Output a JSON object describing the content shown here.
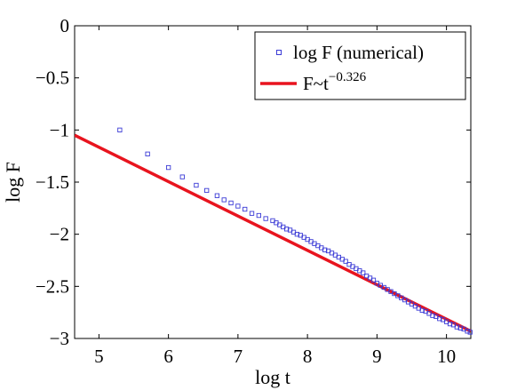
{
  "chart_data": {
    "type": "scatter",
    "xlabel": "log t",
    "ylabel": "log F",
    "xlim": [
      4.65,
      10.35
    ],
    "ylim": [
      -3,
      0
    ],
    "xticks": [
      "5",
      "6",
      "7",
      "8",
      "9",
      "10"
    ],
    "yticks": [
      "0",
      "−0.5",
      "−1",
      "−1.5",
      "−2",
      "−2.5",
      "−3"
    ],
    "legend_position": "top-right",
    "series": [
      {
        "name": "log F (numerical)",
        "kind": "points",
        "marker": "square",
        "color": "#3b3bd6",
        "points": [
          [
            5.3,
            -1.0
          ],
          [
            5.7,
            -1.23
          ],
          [
            6.0,
            -1.36
          ],
          [
            6.2,
            -1.45
          ],
          [
            6.4,
            -1.53
          ],
          [
            6.55,
            -1.58
          ],
          [
            6.7,
            -1.63
          ],
          [
            6.8,
            -1.67
          ],
          [
            6.9,
            -1.7
          ],
          [
            7.0,
            -1.73
          ],
          [
            7.1,
            -1.76
          ],
          [
            7.2,
            -1.8
          ],
          [
            7.3,
            -1.82
          ],
          [
            7.4,
            -1.85
          ],
          [
            7.5,
            -1.87
          ],
          [
            7.55,
            -1.89
          ],
          [
            7.6,
            -1.91
          ],
          [
            7.65,
            -1.93
          ],
          [
            7.7,
            -1.95
          ],
          [
            7.75,
            -1.96
          ],
          [
            7.8,
            -1.98
          ],
          [
            7.85,
            -2.0
          ],
          [
            7.9,
            -2.01
          ],
          [
            7.95,
            -2.03
          ],
          [
            8.0,
            -2.05
          ],
          [
            8.05,
            -2.07
          ],
          [
            8.1,
            -2.09
          ],
          [
            8.15,
            -2.11
          ],
          [
            8.2,
            -2.13
          ],
          [
            8.25,
            -2.15
          ],
          [
            8.3,
            -2.16
          ],
          [
            8.35,
            -2.18
          ],
          [
            8.4,
            -2.2
          ],
          [
            8.45,
            -2.22
          ],
          [
            8.5,
            -2.24
          ],
          [
            8.55,
            -2.26
          ],
          [
            8.6,
            -2.29
          ],
          [
            8.65,
            -2.31
          ],
          [
            8.7,
            -2.33
          ],
          [
            8.75,
            -2.35
          ],
          [
            8.8,
            -2.37
          ],
          [
            8.85,
            -2.4
          ],
          [
            8.9,
            -2.42
          ],
          [
            8.95,
            -2.44
          ],
          [
            9.0,
            -2.47
          ],
          [
            9.05,
            -2.49
          ],
          [
            9.1,
            -2.51
          ],
          [
            9.15,
            -2.53
          ],
          [
            9.2,
            -2.55
          ],
          [
            9.25,
            -2.57
          ],
          [
            9.3,
            -2.59
          ],
          [
            9.35,
            -2.61
          ],
          [
            9.4,
            -2.63
          ],
          [
            9.45,
            -2.65
          ],
          [
            9.5,
            -2.67
          ],
          [
            9.55,
            -2.69
          ],
          [
            9.6,
            -2.71
          ],
          [
            9.65,
            -2.73
          ],
          [
            9.7,
            -2.74
          ],
          [
            9.75,
            -2.76
          ],
          [
            9.8,
            -2.78
          ],
          [
            9.85,
            -2.79
          ],
          [
            9.9,
            -2.81
          ],
          [
            9.95,
            -2.82
          ],
          [
            10.0,
            -2.84
          ],
          [
            10.05,
            -2.86
          ],
          [
            10.1,
            -2.87
          ],
          [
            10.15,
            -2.89
          ],
          [
            10.2,
            -2.9
          ],
          [
            10.25,
            -2.91
          ],
          [
            10.3,
            -2.93
          ],
          [
            10.34,
            -2.94
          ]
        ]
      },
      {
        "name": "F~t",
        "name_superscript": "−0.326",
        "kind": "line",
        "color": "#e8141e",
        "points": [
          [
            4.65,
            -1.05
          ],
          [
            10.35,
            -2.93
          ]
        ]
      }
    ]
  }
}
